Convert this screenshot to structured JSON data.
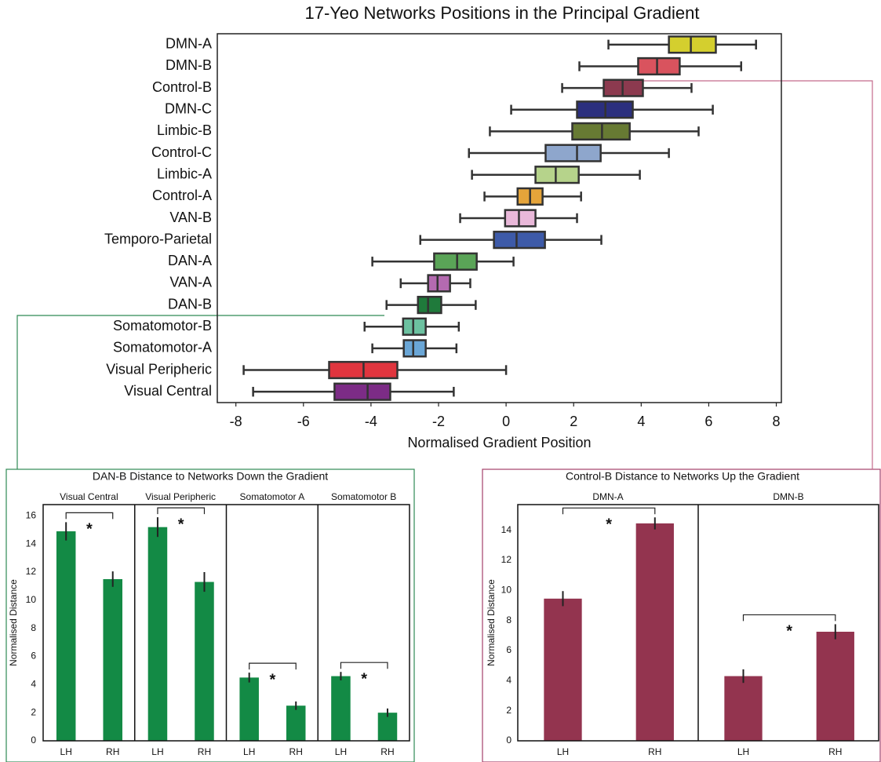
{
  "chart_data": [
    {
      "type": "box",
      "title": "17-Yeo Networks Positions in the Principal Gradient",
      "xlabel": "Normalised Gradient Position",
      "categories": [
        "DMN-A",
        "DMN-B",
        "Control-B",
        "DMN-C",
        "Limbic-B",
        "Control-C",
        "Limbic-A",
        "Control-A",
        "VAN-B",
        "Temporo-Parietal",
        "DAN-A",
        "VAN-A",
        "DAN-B",
        "Somatomotor-B",
        "Somatomotor-A",
        "Visual Peripheric",
        "Visual Central"
      ],
      "boxes": [
        {
          "color": "#d4cf2e",
          "whislo": 3.03,
          "q1": 4.82,
          "med": 5.47,
          "q3": 6.21,
          "whishi": 7.4
        },
        {
          "color": "#d9535e",
          "whislo": 2.17,
          "q1": 3.91,
          "med": 4.47,
          "q3": 5.14,
          "whishi": 6.96
        },
        {
          "color": "#8c3a4f",
          "whislo": 1.66,
          "q1": 2.89,
          "med": 3.45,
          "q3": 4.05,
          "whishi": 5.49
        },
        {
          "color": "#2b2f7e",
          "whislo": 0.15,
          "q1": 2.1,
          "med": 2.94,
          "q3": 3.75,
          "whishi": 6.12
        },
        {
          "color": "#677a33",
          "whislo": -0.48,
          "q1": 1.96,
          "med": 2.84,
          "q3": 3.66,
          "whishi": 5.7
        },
        {
          "color": "#8ea6cc",
          "whislo": -1.1,
          "q1": 1.17,
          "med": 2.1,
          "q3": 2.8,
          "whishi": 4.82
        },
        {
          "color": "#b6d38b",
          "whislo": -1.01,
          "q1": 0.87,
          "med": 1.47,
          "q3": 2.15,
          "whishi": 3.96
        },
        {
          "color": "#e5a43a",
          "whislo": -0.64,
          "q1": 0.34,
          "med": 0.71,
          "q3": 1.08,
          "whishi": 2.22
        },
        {
          "color": "#e9b8d9",
          "whislo": -1.36,
          "q1": -0.03,
          "med": 0.38,
          "q3": 0.87,
          "whishi": 2.1
        },
        {
          "color": "#3d5aa8",
          "whislo": -2.54,
          "q1": -0.36,
          "med": 0.31,
          "q3": 1.15,
          "whishi": 2.82
        },
        {
          "color": "#5aa457",
          "whislo": -3.96,
          "q1": -2.13,
          "med": -1.45,
          "q3": -0.87,
          "whishi": 0.22
        },
        {
          "color": "#b46ab0",
          "whislo": -3.12,
          "q1": -2.31,
          "med": -2.03,
          "q3": -1.66,
          "whishi": -1.06
        },
        {
          "color": "#1f7a3b",
          "whislo": -3.54,
          "q1": -2.61,
          "med": -2.31,
          "q3": -1.92,
          "whishi": -0.9
        },
        {
          "color": "#6cc1a0",
          "whislo": -4.19,
          "q1": -3.05,
          "med": -2.75,
          "q3": -2.38,
          "whishi": -1.4
        },
        {
          "color": "#6aa6d6",
          "whislo": -3.96,
          "q1": -3.03,
          "med": -2.75,
          "q3": -2.38,
          "whishi": -1.47
        },
        {
          "color": "#e0353e",
          "whislo": -7.77,
          "q1": -5.24,
          "med": -4.22,
          "q3": -3.22,
          "whishi": 0.0
        },
        {
          "color": "#7c2c86",
          "whislo": -7.49,
          "q1": -5.08,
          "med": -4.1,
          "q3": -3.43,
          "whishi": -1.55
        }
      ],
      "xlim": [
        -8.55,
        8.15
      ],
      "xticks": [
        -8,
        -6,
        -4,
        -2,
        0,
        2,
        4,
        6,
        8
      ]
    },
    {
      "type": "bar",
      "title": "DAN-B Distance to Networks Down the Gradient",
      "ylabel": "Normalised Distance",
      "color": "#138a45",
      "ylim": [
        0,
        16.8
      ],
      "yticks": [
        0,
        2,
        4,
        6,
        8,
        10,
        12,
        14,
        16
      ],
      "panels": [
        {
          "title": "Visual Central",
          "categories": [
            "LH",
            "RH"
          ],
          "values": [
            14.9,
            11.5
          ],
          "errors": [
            0.65,
            0.55
          ],
          "significance": "*"
        },
        {
          "title": "Visual Peripheric",
          "categories": [
            "LH",
            "RH"
          ],
          "values": [
            15.2,
            11.3
          ],
          "errors": [
            0.7,
            0.7
          ],
          "significance": "*"
        },
        {
          "title": "Somatomotor A",
          "categories": [
            "LH",
            "RH"
          ],
          "values": [
            4.5,
            2.5
          ],
          "errors": [
            0.35,
            0.3
          ],
          "significance": "*"
        },
        {
          "title": "Somatomotor B",
          "categories": [
            "LH",
            "RH"
          ],
          "values": [
            4.6,
            2.0
          ],
          "errors": [
            0.3,
            0.3
          ],
          "significance": "*"
        }
      ]
    },
    {
      "type": "bar",
      "title": "Control-B Distance to Networks Up the Gradient",
      "ylabel": "Normalised Distance",
      "color": "#93344f",
      "ylim": [
        0,
        15.7
      ],
      "yticks": [
        0,
        2,
        4,
        6,
        8,
        10,
        12,
        14
      ],
      "panels": [
        {
          "title": "DMN-A",
          "categories": [
            "LH",
            "RH"
          ],
          "values": [
            9.45,
            14.45
          ],
          "errors": [
            0.5,
            0.4
          ],
          "significance": "*"
        },
        {
          "title": "DMN-B",
          "categories": [
            "LH",
            "RH"
          ],
          "values": [
            4.3,
            7.25
          ],
          "errors": [
            0.45,
            0.5
          ],
          "significance": "*"
        }
      ]
    }
  ]
}
